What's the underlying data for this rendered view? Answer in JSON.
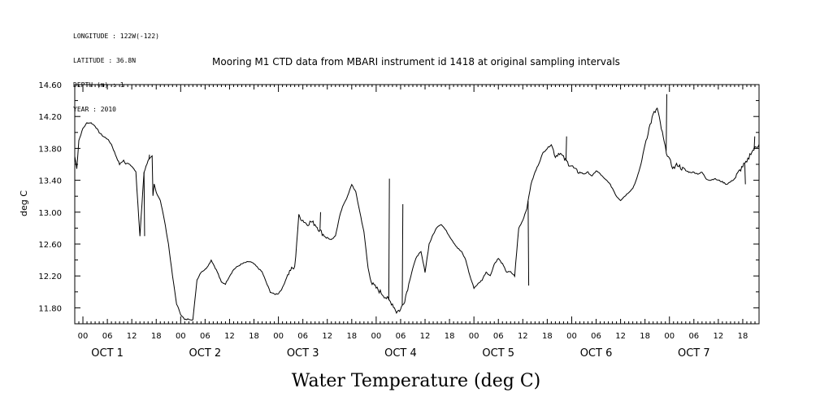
{
  "chart_data": {
    "type": "line",
    "meta_lines": [
      "LONGITUDE : 122W(-122)",
      "LATITUDE : 36.8N",
      "DEPTH (m) : 1",
      "YEAR : 2010"
    ],
    "title": "Mooring M1 CTD data from MBARI instrument id 1418 at original sampling intervals",
    "xlabel": "Water Temperature (deg C)",
    "ylabel": "deg C",
    "ylim": [
      11.6,
      14.6
    ],
    "xlim_hours": [
      -2,
      166
    ],
    "grid": false,
    "y_ticks": [
      "11.80",
      "12.20",
      "12.60",
      "13.00",
      "13.40",
      "13.80",
      "14.20",
      "14.60"
    ],
    "x_hour_labels": [
      "00",
      "06",
      "12",
      "18",
      "00",
      "06",
      "12",
      "18",
      "00",
      "06",
      "12",
      "18",
      "00",
      "06",
      "12",
      "18",
      "00",
      "06",
      "12",
      "18",
      "00",
      "06",
      "12",
      "18",
      "00",
      "06",
      "12",
      "18"
    ],
    "day_labels": [
      "OCT 1",
      "OCT 2",
      "OCT 3",
      "OCT 4",
      "OCT 5",
      "OCT 6",
      "OCT 7"
    ],
    "series": [
      {
        "name": "Water Temperature",
        "x": [
          -2,
          -1.5,
          -1,
          0,
          1,
          2,
          3,
          4,
          5,
          6,
          7,
          8,
          9,
          10,
          10.5,
          11,
          12,
          13,
          14,
          15,
          16,
          17,
          17.2,
          17.5,
          18,
          18.5,
          19,
          20,
          21,
          22,
          23,
          24,
          25,
          26,
          27,
          28,
          29,
          30,
          31,
          31.5,
          32,
          33,
          34,
          35,
          36,
          37,
          38,
          39,
          40,
          41,
          42,
          43,
          44,
          45,
          46,
          47,
          48,
          49,
          50,
          51,
          52,
          53,
          54,
          55,
          56,
          57,
          58,
          59,
          60,
          61,
          62,
          63,
          64,
          65,
          66,
          67,
          68,
          69,
          70,
          71,
          72,
          73,
          74,
          75,
          76,
          77,
          78,
          79,
          80,
          81,
          82,
          83,
          84,
          85,
          86,
          87,
          88,
          89,
          90,
          91,
          92,
          93,
          94,
          95,
          96,
          97,
          98,
          99,
          100,
          101,
          102,
          103,
          104,
          105,
          106,
          107,
          108,
          109,
          110,
          111,
          112,
          113,
          114,
          115,
          116,
          117,
          118,
          119,
          120,
          121,
          122,
          123,
          124,
          125,
          126,
          127,
          128,
          129,
          130,
          131,
          132,
          133,
          134,
          135,
          136,
          137,
          138,
          139,
          140,
          141,
          142,
          143,
          144,
          145,
          146,
          147,
          148,
          149,
          150,
          151,
          152,
          153,
          154,
          155,
          156,
          157,
          158,
          159,
          160,
          161,
          162,
          163,
          164,
          165,
          166
        ],
        "values": [
          13.7,
          13.55,
          13.9,
          14.05,
          14.12,
          14.12,
          14.08,
          14.0,
          13.95,
          13.92,
          13.85,
          13.72,
          13.6,
          13.65,
          13.6,
          13.62,
          13.58,
          13.5,
          12.7,
          13.5,
          13.65,
          13.7,
          13.2,
          13.35,
          13.25,
          13.2,
          13.15,
          12.9,
          12.6,
          12.2,
          11.85,
          11.72,
          11.65,
          11.66,
          11.65,
          12.15,
          12.25,
          12.28,
          12.35,
          12.4,
          12.35,
          12.25,
          12.12,
          12.1,
          12.2,
          12.28,
          12.32,
          12.35,
          12.37,
          12.38,
          12.35,
          12.3,
          12.25,
          12.12,
          12.0,
          11.97,
          11.98,
          12.05,
          12.18,
          12.28,
          12.3,
          12.95,
          12.9,
          12.85,
          12.88,
          12.85,
          12.78,
          12.72,
          12.68,
          12.65,
          12.7,
          12.95,
          13.1,
          13.2,
          13.35,
          13.25,
          13.0,
          12.75,
          12.3,
          12.1,
          12.05,
          12.0,
          11.95,
          11.9,
          11.85,
          11.75,
          11.78,
          11.9,
          12.1,
          12.3,
          12.45,
          12.5,
          12.25,
          12.6,
          12.72,
          12.82,
          12.85,
          12.78,
          12.7,
          12.62,
          12.55,
          12.5,
          12.4,
          12.2,
          12.05,
          12.1,
          12.15,
          12.25,
          12.2,
          12.35,
          12.42,
          12.35,
          12.25,
          12.25,
          12.2,
          12.8,
          12.9,
          13.05,
          13.35,
          13.5,
          13.62,
          13.75,
          13.8,
          13.85,
          13.7,
          13.75,
          13.68,
          13.62,
          13.58,
          13.52,
          13.5,
          13.48,
          13.5,
          13.45,
          13.52,
          13.48,
          13.42,
          13.38,
          13.3,
          13.2,
          13.15,
          13.2,
          13.25,
          13.3,
          13.42,
          13.6,
          13.85,
          14.05,
          14.22,
          14.3,
          14.05,
          13.8,
          13.65,
          13.55,
          13.6,
          13.55,
          13.52,
          13.5,
          13.5,
          13.48,
          13.5,
          13.42,
          13.4,
          13.42,
          13.4,
          13.38,
          13.35,
          13.38,
          13.42,
          13.5,
          13.58,
          13.62,
          13.75,
          13.8,
          13.85
        ]
      }
    ],
    "spikes": [
      {
        "x": 15,
        "y": 12.7
      },
      {
        "x": 16.2,
        "y": 13.72
      },
      {
        "x": 58.2,
        "y": 13.0
      },
      {
        "x": 75.1,
        "y": 13.42
      },
      {
        "x": 78.4,
        "y": 13.1
      },
      {
        "x": 109.3,
        "y": 12.08
      },
      {
        "x": 118.6,
        "y": 13.95
      },
      {
        "x": 143.2,
        "y": 14.48
      },
      {
        "x": 162.5,
        "y": 13.35
      },
      {
        "x": 164.8,
        "y": 13.95
      }
    ]
  }
}
